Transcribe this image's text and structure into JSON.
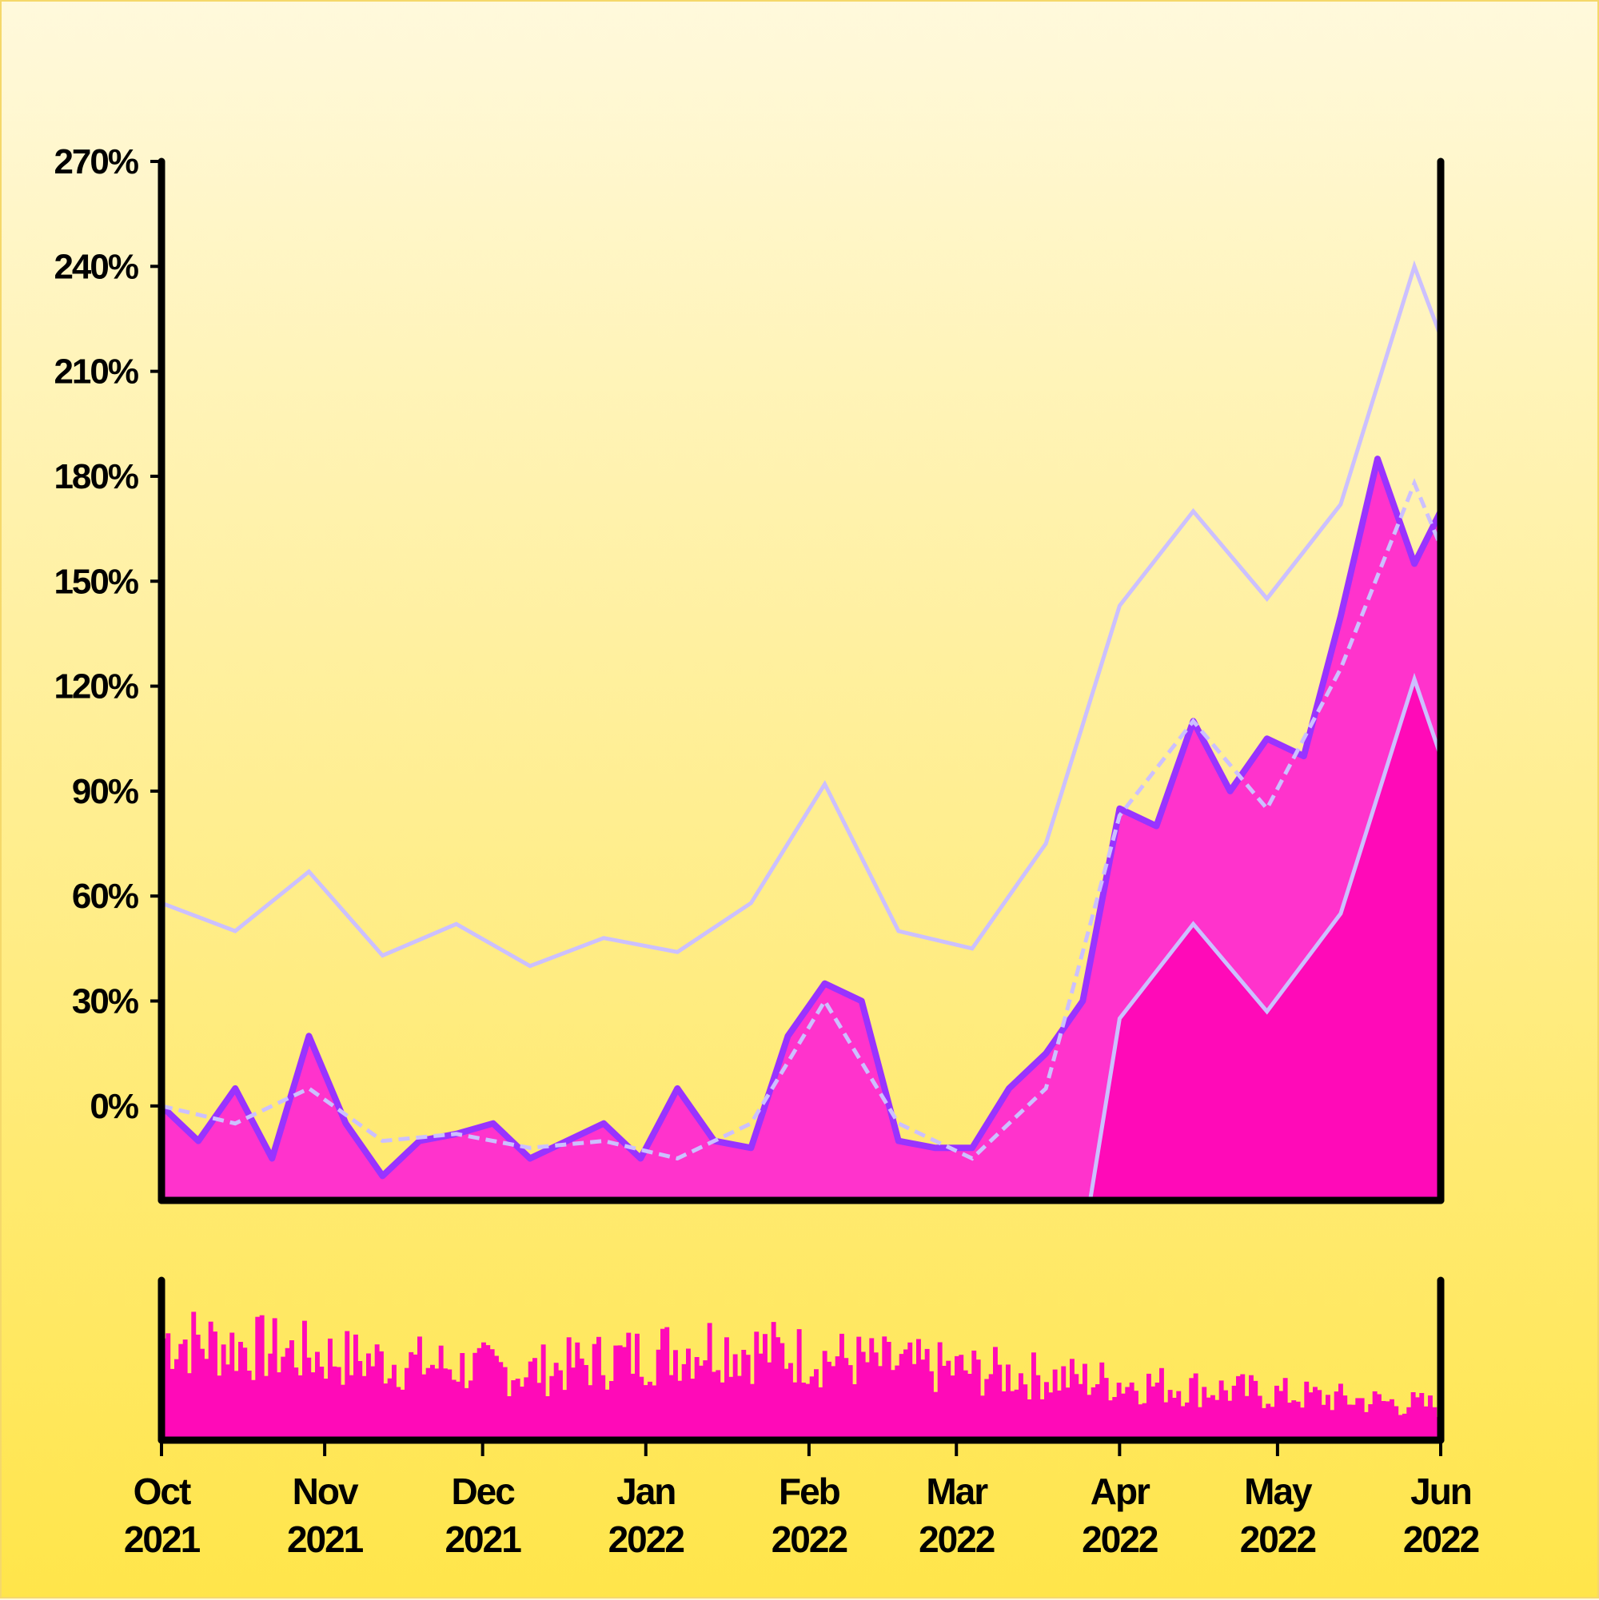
{
  "chart_data": {
    "type": "area",
    "title": "",
    "xlabel": "",
    "ylabel": "",
    "ylim": [
      -27,
      270
    ],
    "y_ticks": [
      "270%",
      "240%",
      "210%",
      "180%",
      "150%",
      "120%",
      "90%",
      "60%",
      "30%",
      "0%"
    ],
    "y_tick_values": [
      270,
      240,
      210,
      180,
      150,
      120,
      90,
      60,
      30,
      0
    ],
    "x_ticks": [
      {
        "month": "Oct",
        "year": "2021",
        "date": "2021-10-01"
      },
      {
        "month": "Nov",
        "year": "2021",
        "date": "2021-11-01"
      },
      {
        "month": "Dec",
        "year": "2021",
        "date": "2021-12-01"
      },
      {
        "month": "Jan",
        "year": "2022",
        "date": "2022-01-01"
      },
      {
        "month": "Feb",
        "year": "2022",
        "date": "2022-02-01"
      },
      {
        "month": "Mar",
        "year": "2022",
        "date": "2022-03-01"
      },
      {
        "month": "Apr",
        "year": "2022",
        "date": "2022-04-01"
      },
      {
        "month": "May",
        "year": "2022",
        "date": "2022-05-01"
      },
      {
        "month": "Jun",
        "year": "2022",
        "date": "2022-06-01"
      }
    ],
    "x_range": [
      "2021-10-01",
      "2022-06-01"
    ],
    "grid": false,
    "legend": "none",
    "colors": {
      "area_fill": "#ff33cc",
      "area_edge": "#9933ff",
      "lower_band_fill": "#ff0ab8",
      "band_lines": "#ccc0ff",
      "volume_bars": "#ff0ab8",
      "axis": "#000000"
    },
    "series": [
      {
        "style": "area-with-purple-edge",
        "x": [
          "2021-10-01",
          "2021-10-08",
          "2021-10-15",
          "2021-10-22",
          "2021-10-29",
          "2021-11-05",
          "2021-11-12",
          "2021-11-19",
          "2021-11-26",
          "2021-12-03",
          "2021-12-10",
          "2021-12-17",
          "2021-12-24",
          "2021-12-31",
          "2022-01-07",
          "2022-01-14",
          "2022-01-21",
          "2022-01-28",
          "2022-02-04",
          "2022-02-11",
          "2022-02-18",
          "2022-02-25",
          "2022-03-04",
          "2022-03-11",
          "2022-03-18",
          "2022-03-25",
          "2022-04-01",
          "2022-04-08",
          "2022-04-15",
          "2022-04-22",
          "2022-04-29",
          "2022-05-06",
          "2022-05-13",
          "2022-05-20",
          "2022-05-27",
          "2022-06-01"
        ],
        "values": [
          0,
          -10,
          5,
          -15,
          20,
          -5,
          -20,
          -10,
          -8,
          -5,
          -15,
          -10,
          -5,
          -15,
          5,
          -10,
          -12,
          20,
          35,
          30,
          -10,
          -12,
          -12,
          5,
          15,
          30,
          85,
          80,
          110,
          90,
          105,
          100,
          140,
          185,
          155,
          170
        ]
      },
      {
        "style": "dashed-moving-average",
        "x": [
          "2021-10-01",
          "2021-10-15",
          "2021-10-29",
          "2021-11-12",
          "2021-11-26",
          "2021-12-10",
          "2021-12-24",
          "2022-01-07",
          "2022-01-21",
          "2022-02-04",
          "2022-02-18",
          "2022-03-04",
          "2022-03-18",
          "2022-04-01",
          "2022-04-15",
          "2022-04-29",
          "2022-05-13",
          "2022-05-27",
          "2022-06-01"
        ],
        "values": [
          0,
          -5,
          5,
          -10,
          -8,
          -12,
          -10,
          -15,
          -5,
          30,
          -5,
          -15,
          5,
          83,
          110,
          85,
          125,
          178,
          160
        ]
      },
      {
        "style": "upper-band",
        "x": [
          "2021-10-01",
          "2021-10-15",
          "2021-10-29",
          "2021-11-12",
          "2021-11-26",
          "2021-12-10",
          "2021-12-24",
          "2022-01-07",
          "2022-01-21",
          "2022-02-04",
          "2022-02-18",
          "2022-03-04",
          "2022-03-18",
          "2022-04-01",
          "2022-04-15",
          "2022-04-29",
          "2022-05-13",
          "2022-05-27",
          "2022-06-01"
        ],
        "values": [
          58,
          50,
          67,
          43,
          52,
          40,
          48,
          44,
          58,
          92,
          50,
          45,
          75,
          143,
          170,
          145,
          172,
          240,
          220
        ]
      },
      {
        "style": "lower-band",
        "x": [
          "2022-03-25",
          "2022-04-01",
          "2022-04-15",
          "2022-04-29",
          "2022-05-13",
          "2022-05-27",
          "2022-06-01"
        ],
        "values": [
          -40,
          25,
          52,
          27,
          55,
          122,
          100
        ]
      }
    ],
    "volume": {
      "x_range": [
        "2021-10-01",
        "2022-06-01"
      ],
      "values_relative": [
        0.75,
        0.6,
        0.5,
        0.7,
        0.55,
        0.45,
        0.35,
        0.25
      ]
    }
  }
}
